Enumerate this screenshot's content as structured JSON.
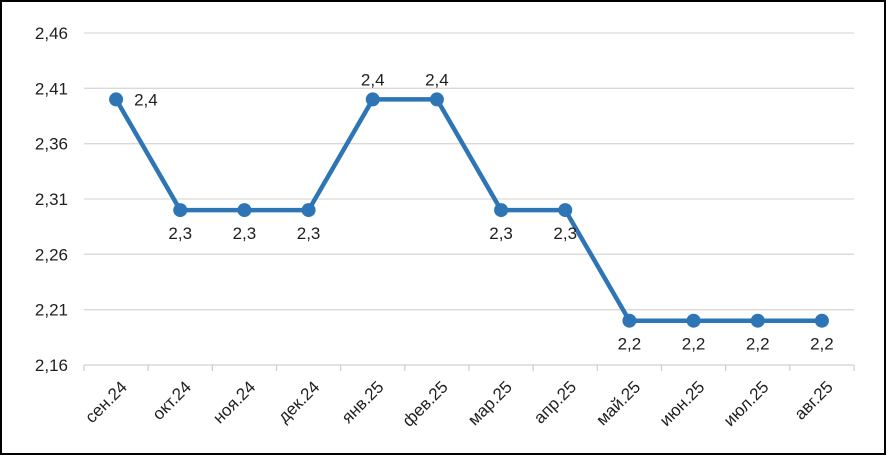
{
  "chart_data": {
    "type": "line",
    "title": "",
    "xlabel": "",
    "ylabel": "",
    "categories": [
      "сен.24",
      "окт.24",
      "ноя.24",
      "дек.24",
      "янв.25",
      "фев.25",
      "мар.25",
      "апр.25",
      "май.25",
      "июн.25",
      "июл.25",
      "авг.25"
    ],
    "values": [
      2.4,
      2.3,
      2.3,
      2.3,
      2.4,
      2.4,
      2.3,
      2.3,
      2.2,
      2.2,
      2.2,
      2.2
    ],
    "data_labels": [
      "2,4",
      "2,3",
      "2,3",
      "2,3",
      "2,4",
      "2,4",
      "2,3",
      "2,3",
      "2,2",
      "2,2",
      "2,2",
      "2,2"
    ],
    "data_label_positions": [
      "right",
      "below",
      "below",
      "below",
      "above",
      "above",
      "below",
      "below",
      "below",
      "below",
      "below",
      "below"
    ],
    "ylim": [
      2.16,
      2.46
    ],
    "ytick_step": 0.05,
    "ytick_labels": [
      "2,16",
      "2,21",
      "2,26",
      "2,31",
      "2,36",
      "2,41",
      "2,46"
    ],
    "grid": true,
    "legend": "none",
    "colors": {
      "line": "#2E75B6",
      "marker": "#2E75B6",
      "gridline": "#D9D9D9",
      "axis": "#D0D0D0",
      "text": "#1f1f1f",
      "frame_border": "#000000",
      "background": "#ffffff"
    }
  }
}
